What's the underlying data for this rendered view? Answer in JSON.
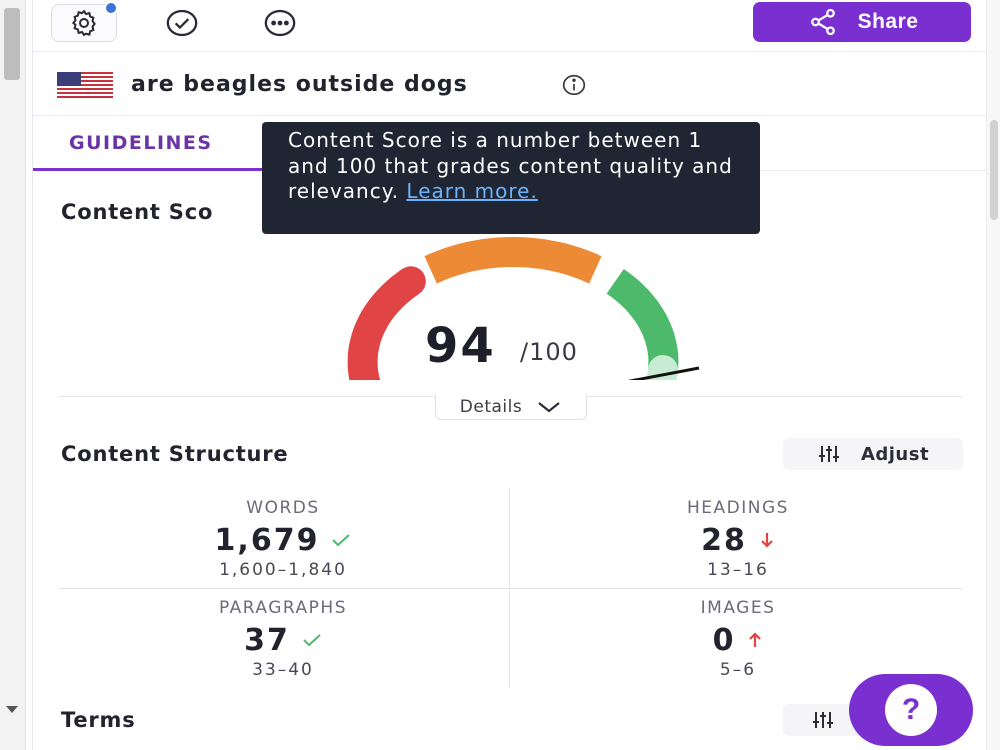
{
  "toolbar": {
    "settings_icon": "gear-icon",
    "check_icon": "check-circle-icon",
    "more_icon": "more-horizontal-icon",
    "share_label": "Share",
    "share_icon": "share-icon"
  },
  "keyword": {
    "flag": "us-flag-icon",
    "text": "are beagles outside dogs",
    "info_icon": "info-icon"
  },
  "tabs": {
    "guidelines_label": "GUIDELINES"
  },
  "tooltip": {
    "text": "Content Score is a number between 1 and 100 that grades content quality and relevancy.",
    "link_label": "Learn more."
  },
  "content_score": {
    "title": "Content Sco",
    "value": "94",
    "max": "/100",
    "fraction": 0.94,
    "details_label": "Details",
    "colors": {
      "red": "#e04444",
      "orange": "#ed8a36",
      "green": "#4cba6a",
      "green_light": "#c8ecd3"
    }
  },
  "content_structure": {
    "title": "Content Structure",
    "adjust_label": "Adjust",
    "metrics": [
      {
        "label": "WORDS",
        "value": "1,679",
        "trend": "check",
        "range": "1,600–1,840"
      },
      {
        "label": "HEADINGS",
        "value": "28",
        "trend": "down",
        "range": "13–16"
      },
      {
        "label": "PARAGRAPHS",
        "value": "37",
        "trend": "check",
        "range": "33–40"
      },
      {
        "label": "IMAGES",
        "value": "0",
        "trend": "up",
        "range": "5–6"
      }
    ]
  },
  "terms": {
    "title": "Terms"
  },
  "help": {
    "label": "?"
  },
  "colors": {
    "accent": "#7a2fd1",
    "tooltip_bg": "#1f2533",
    "link": "#6bb3ff",
    "check": "#4cba6a",
    "warn": "#e04444"
  }
}
